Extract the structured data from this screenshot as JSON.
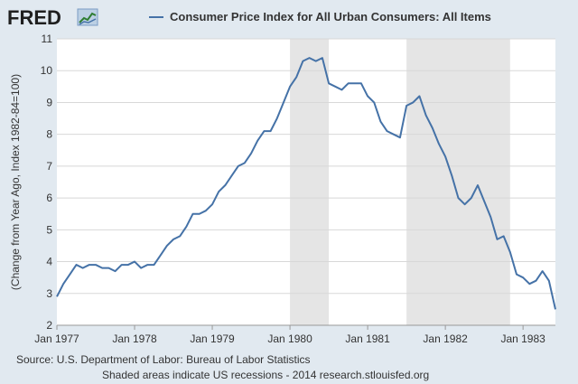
{
  "branding": {
    "logo_text": "FRED",
    "logo_icon": "chart-line-icon"
  },
  "colors": {
    "background": "#e1e9f0",
    "plot_background": "#ffffff",
    "series_line": "#4572a7",
    "recession_shade": "#e5e5e5",
    "grid": "#d8d8d8"
  },
  "footer": {
    "source": "Source: U.S. Department of Labor: Bureau of Labor Statistics",
    "note": "Shaded areas indicate US recessions - 2014 research.stlouisfed.org"
  },
  "chart_data": {
    "type": "line",
    "title": "",
    "xlabel": "",
    "ylabel": "(Change from Year Ago, Index 1982-84=100)",
    "ylim": [
      2,
      11
    ],
    "xlim": [
      1977.0,
      1983.4167
    ],
    "y_ticks": [
      2,
      3,
      4,
      5,
      6,
      7,
      8,
      9,
      10,
      11
    ],
    "x_ticks": [
      {
        "label": "Jan 1977",
        "value": 1977
      },
      {
        "label": "Jan 1978",
        "value": 1978
      },
      {
        "label": "Jan 1979",
        "value": 1979
      },
      {
        "label": "Jan 1980",
        "value": 1980
      },
      {
        "label": "Jan 1981",
        "value": 1981
      },
      {
        "label": "Jan 1982",
        "value": 1982
      },
      {
        "label": "Jan 1983",
        "value": 1983
      }
    ],
    "grid": true,
    "recessions": [
      {
        "start": 1980.0,
        "end": 1980.5
      },
      {
        "start": 1981.5,
        "end": 1982.8333
      }
    ],
    "series": [
      {
        "name": "Consumer Price Index for All Urban Consumers: All Items",
        "start": 1977.0,
        "step": 0.0833333,
        "values": [
          2.9,
          3.3,
          3.6,
          3.9,
          3.8,
          3.9,
          3.9,
          3.8,
          3.8,
          3.7,
          3.9,
          3.9,
          4.0,
          3.8,
          3.9,
          3.9,
          4.2,
          4.5,
          4.7,
          4.8,
          5.1,
          5.5,
          5.5,
          5.6,
          5.8,
          6.2,
          6.4,
          6.7,
          7.0,
          7.1,
          7.4,
          7.8,
          8.1,
          8.1,
          8.5,
          9.0,
          9.5,
          9.8,
          10.3,
          10.4,
          10.3,
          10.4,
          9.6,
          9.5,
          9.4,
          9.6,
          9.6,
          9.6,
          9.2,
          9.0,
          8.4,
          8.1,
          8.0,
          7.9,
          8.9,
          9.0,
          9.2,
          8.6,
          8.2,
          7.7,
          7.3,
          6.7,
          6.0,
          5.8,
          6.0,
          6.4,
          5.9,
          5.4,
          4.7,
          4.8,
          4.3,
          3.6,
          3.5,
          3.3,
          3.4,
          3.7,
          3.4,
          2.5
        ]
      }
    ]
  }
}
